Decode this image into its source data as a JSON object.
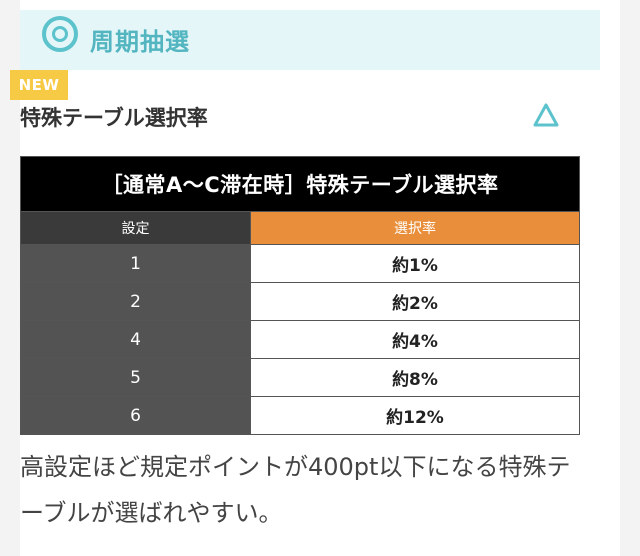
{
  "header": {
    "title": "周期抽選",
    "icon": "target-icon"
  },
  "badge": "NEW",
  "section": {
    "title": "特殊テーブル選択率",
    "toggle_icon": "triangle-icon"
  },
  "table": {
    "title": "［通常A〜C滞在時］特殊テーブル選択率",
    "headers": [
      "設定",
      "選択率"
    ],
    "rows": [
      {
        "setting": "1",
        "rate": "約1%"
      },
      {
        "setting": "2",
        "rate": "約2%"
      },
      {
        "setting": "4",
        "rate": "約4%"
      },
      {
        "setting": "5",
        "rate": "約8%"
      },
      {
        "setting": "6",
        "rate": "約12%"
      }
    ]
  },
  "note": "高設定ほど規定ポイントが400pt以下になる特殊テーブルが選ばれやすい。",
  "colors": {
    "accent": "#5cc2cc",
    "badge": "#f7ca45",
    "rate_header": "#e98f3b"
  }
}
